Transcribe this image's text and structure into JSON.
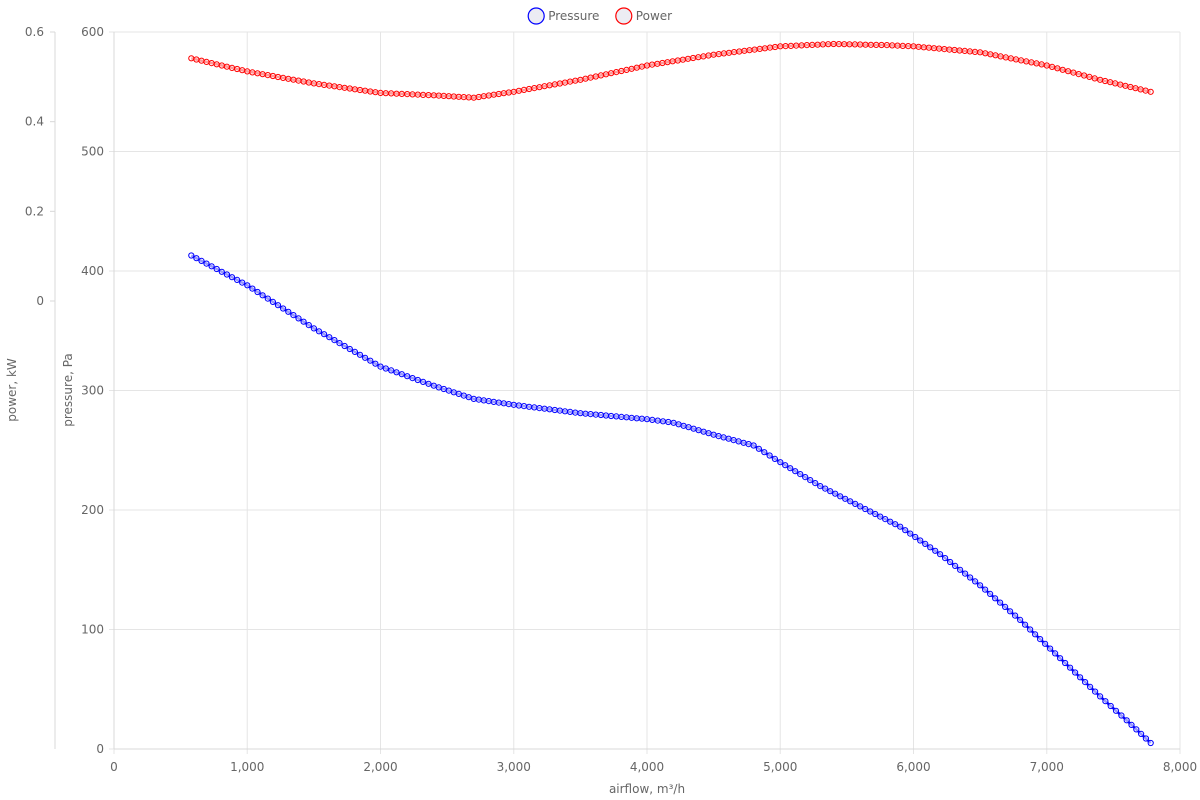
{
  "chart_data": {
    "type": "line",
    "xlabel": "airflow, m³/h",
    "y_left_outer_label": "power, kW",
    "y_left_inner_label": "pressure, Pa",
    "xlim": [
      0,
      8000
    ],
    "ylim_pressure": [
      0,
      600
    ],
    "ylim_power_axis": [
      0,
      0.6
    ],
    "x_ticks": [
      "0",
      "1,000",
      "2,000",
      "3,000",
      "4,000",
      "5,000",
      "6,000",
      "7,000",
      "8,000"
    ],
    "pressure_ticks": [
      "0",
      "100",
      "200",
      "300",
      "400",
      "500",
      "600"
    ],
    "power_ticks": [
      "0",
      "0.2",
      "0.4",
      "0.6"
    ],
    "legend_position": "top-center",
    "grid": true,
    "series": [
      {
        "name": "Pressure",
        "color": "#0000ff",
        "axis": "pressure",
        "points": [
          [
            580,
            413
          ],
          [
            1000,
            388
          ],
          [
            1500,
            352
          ],
          [
            2000,
            320
          ],
          [
            2400,
            304
          ],
          [
            2700,
            293
          ],
          [
            3000,
            288
          ],
          [
            3500,
            281
          ],
          [
            4000,
            276
          ],
          [
            4200,
            273
          ],
          [
            4500,
            263
          ],
          [
            4800,
            254
          ],
          [
            5000,
            240
          ],
          [
            5300,
            220
          ],
          [
            5600,
            203
          ],
          [
            5900,
            186
          ],
          [
            6200,
            163
          ],
          [
            6500,
            137
          ],
          [
            6800,
            108
          ],
          [
            7100,
            76
          ],
          [
            7400,
            44
          ],
          [
            7600,
            24
          ],
          [
            7780,
            5
          ]
        ]
      },
      {
        "name": "Power",
        "color": "#ff0000",
        "axis": "pressure",
        "points": [
          [
            580,
            578
          ],
          [
            1000,
            567
          ],
          [
            1500,
            557
          ],
          [
            2000,
            549
          ],
          [
            2400,
            547
          ],
          [
            2700,
            545
          ],
          [
            3000,
            550
          ],
          [
            3500,
            560
          ],
          [
            4000,
            572
          ],
          [
            4500,
            581
          ],
          [
            5000,
            588
          ],
          [
            5400,
            590
          ],
          [
            5800,
            589
          ],
          [
            6000,
            588
          ],
          [
            6500,
            583
          ],
          [
            7000,
            572
          ],
          [
            7400,
            560
          ],
          [
            7780,
            550
          ]
        ]
      }
    ]
  }
}
